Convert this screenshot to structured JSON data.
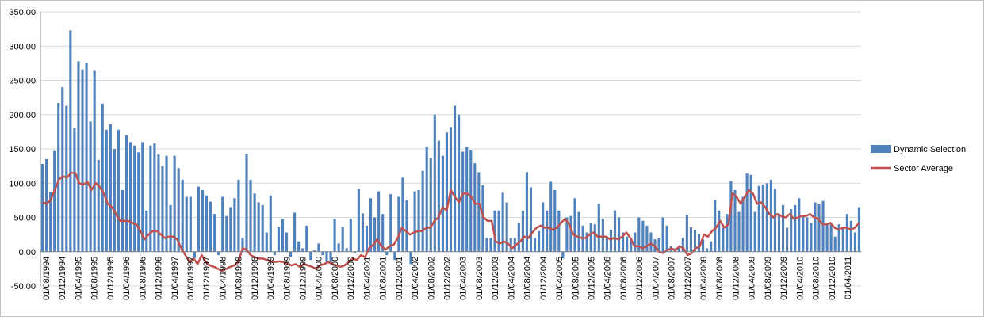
{
  "chart_data": {
    "type": "bar",
    "ylim": [
      -50,
      350
    ],
    "yticks": [
      "-50.00",
      "0.00",
      "50.00",
      "100.00",
      "150.00",
      "200.00",
      "250.00",
      "300.00",
      "350.00"
    ],
    "grid": true,
    "legend_position": "right",
    "colors": {
      "bar": "#4f81bd",
      "line": "#c0504d",
      "grid": "#d9d9d9"
    },
    "x_labels": [
      "01/08/1994",
      "01/12/1994",
      "01/04/1995",
      "01/08/1995",
      "01/12/1995",
      "01/04/1996",
      "01/08/1996",
      "01/12/1996",
      "01/04/1997",
      "01/08/1997",
      "01/12/1997",
      "01/04/1998",
      "01/08/1998",
      "01/12/1998",
      "01/04/1999",
      "01/08/1999",
      "01/12/1999",
      "01/04/2000",
      "01/08/2000",
      "01/12/2000",
      "01/04/2001",
      "01/08/2001",
      "01/12/2001",
      "01/04/2002",
      "01/08/2002",
      "01/12/2002",
      "01/04/2003",
      "01/08/2003",
      "01/12/2003",
      "01/04/2004",
      "01/08/2004",
      "01/12/2004",
      "01/04/2005",
      "01/08/2005",
      "01/12/2005",
      "01/04/2006",
      "01/08/2006",
      "01/12/2006",
      "01/04/2007",
      "01/08/2007",
      "01/12/2007",
      "01/04/2008",
      "01/08/2008",
      "01/12/2008",
      "01/04/2009",
      "01/08/2009",
      "01/12/2009",
      "01/04/2010",
      "01/08/2010",
      "01/12/2010",
      "01/04/2011"
    ],
    "series": [
      {
        "name": "Dynamic Selection",
        "type": "bar",
        "values": [
          128,
          135,
          87,
          147,
          217,
          240,
          213,
          323,
          180,
          278,
          266,
          275,
          190,
          264,
          134,
          216,
          178,
          186,
          150,
          178,
          90,
          170,
          160,
          155,
          145,
          160,
          60,
          155,
          158,
          142,
          125,
          140,
          68,
          140,
          122,
          105,
          80,
          80,
          -10,
          95,
          90,
          82,
          73,
          55,
          -5,
          80,
          52,
          65,
          78,
          105,
          20,
          143,
          105,
          85,
          72,
          68,
          28,
          82,
          -5,
          36,
          48,
          28,
          -8,
          57,
          15,
          5,
          38,
          -12,
          2,
          12,
          -5,
          -15,
          -18,
          48,
          12,
          36,
          5,
          48,
          -2,
          92,
          56,
          38,
          78,
          50,
          88,
          55,
          -5,
          84,
          -12,
          80,
          108,
          75,
          -18,
          88,
          90,
          118,
          153,
          136,
          200,
          162,
          140,
          174,
          182,
          213,
          200,
          146,
          153,
          148,
          129,
          116,
          97,
          20,
          20,
          60,
          60,
          86,
          72,
          20,
          20,
          42,
          60,
          116,
          94,
          20,
          30,
          72,
          60,
          102,
          90,
          60,
          -10,
          50,
          52,
          78,
          58,
          38,
          28,
          42,
          40,
          70,
          48,
          20,
          32,
          60,
          50,
          28,
          22,
          20,
          28,
          50,
          45,
          38,
          28,
          18,
          20,
          50,
          38,
          8,
          5,
          8,
          20,
          54,
          36,
          32,
          25,
          18,
          5,
          15,
          76,
          60,
          35,
          55,
          103,
          90,
          58,
          80,
          114,
          112,
          58,
          96,
          98,
          100,
          105,
          92,
          55,
          68,
          35,
          62,
          68,
          78,
          52,
          50,
          42,
          72,
          70,
          74,
          40,
          40,
          22,
          40,
          35,
          55,
          45,
          28,
          65
        ]
      },
      {
        "name": "Sector Average",
        "type": "line",
        "values": [
          72,
          70,
          75,
          90,
          105,
          110,
          108,
          115,
          115,
          100,
          98,
          102,
          90,
          100,
          95,
          85,
          70,
          65,
          55,
          45,
          45,
          45,
          42,
          40,
          30,
          18,
          25,
          30,
          30,
          25,
          20,
          22,
          22,
          18,
          5,
          -5,
          -15,
          -10,
          -18,
          -5,
          -15,
          -20,
          -22,
          -25,
          -28,
          -25,
          -22,
          -20,
          -15,
          5,
          3,
          -5,
          -8,
          -10,
          -10,
          -12,
          -14,
          -15,
          -14,
          -15,
          -18,
          -20,
          -18,
          -22,
          -18,
          -20,
          -22,
          -25,
          -20,
          -18,
          -15,
          -18,
          -20,
          -22,
          -20,
          -15,
          -10,
          -12,
          -5,
          -8,
          5,
          10,
          18,
          8,
          3,
          8,
          10,
          20,
          35,
          30,
          25,
          28,
          30,
          30,
          35,
          35,
          45,
          50,
          65,
          60,
          90,
          80,
          72,
          85,
          85,
          80,
          70,
          70,
          50,
          45,
          45,
          15,
          12,
          15,
          12,
          5,
          10,
          15,
          22,
          20,
          28,
          35,
          38,
          35,
          35,
          32,
          35,
          42,
          48,
          40,
          25,
          22,
          20,
          20,
          25,
          28,
          22,
          22,
          22,
          18,
          20,
          18,
          22,
          28,
          20,
          8,
          8,
          5,
          8,
          12,
          8,
          0,
          -2,
          2,
          5,
          2,
          8,
          5,
          -5,
          -2,
          5,
          8,
          25,
          22,
          30,
          35,
          45,
          35,
          40,
          85,
          80,
          70,
          80,
          90,
          85,
          70,
          72,
          65,
          55,
          50,
          55,
          52,
          50,
          55,
          48,
          50,
          52,
          52,
          55,
          50,
          48,
          40,
          40,
          42,
          35,
          32,
          35,
          35,
          32,
          35,
          42
        ]
      }
    ]
  }
}
